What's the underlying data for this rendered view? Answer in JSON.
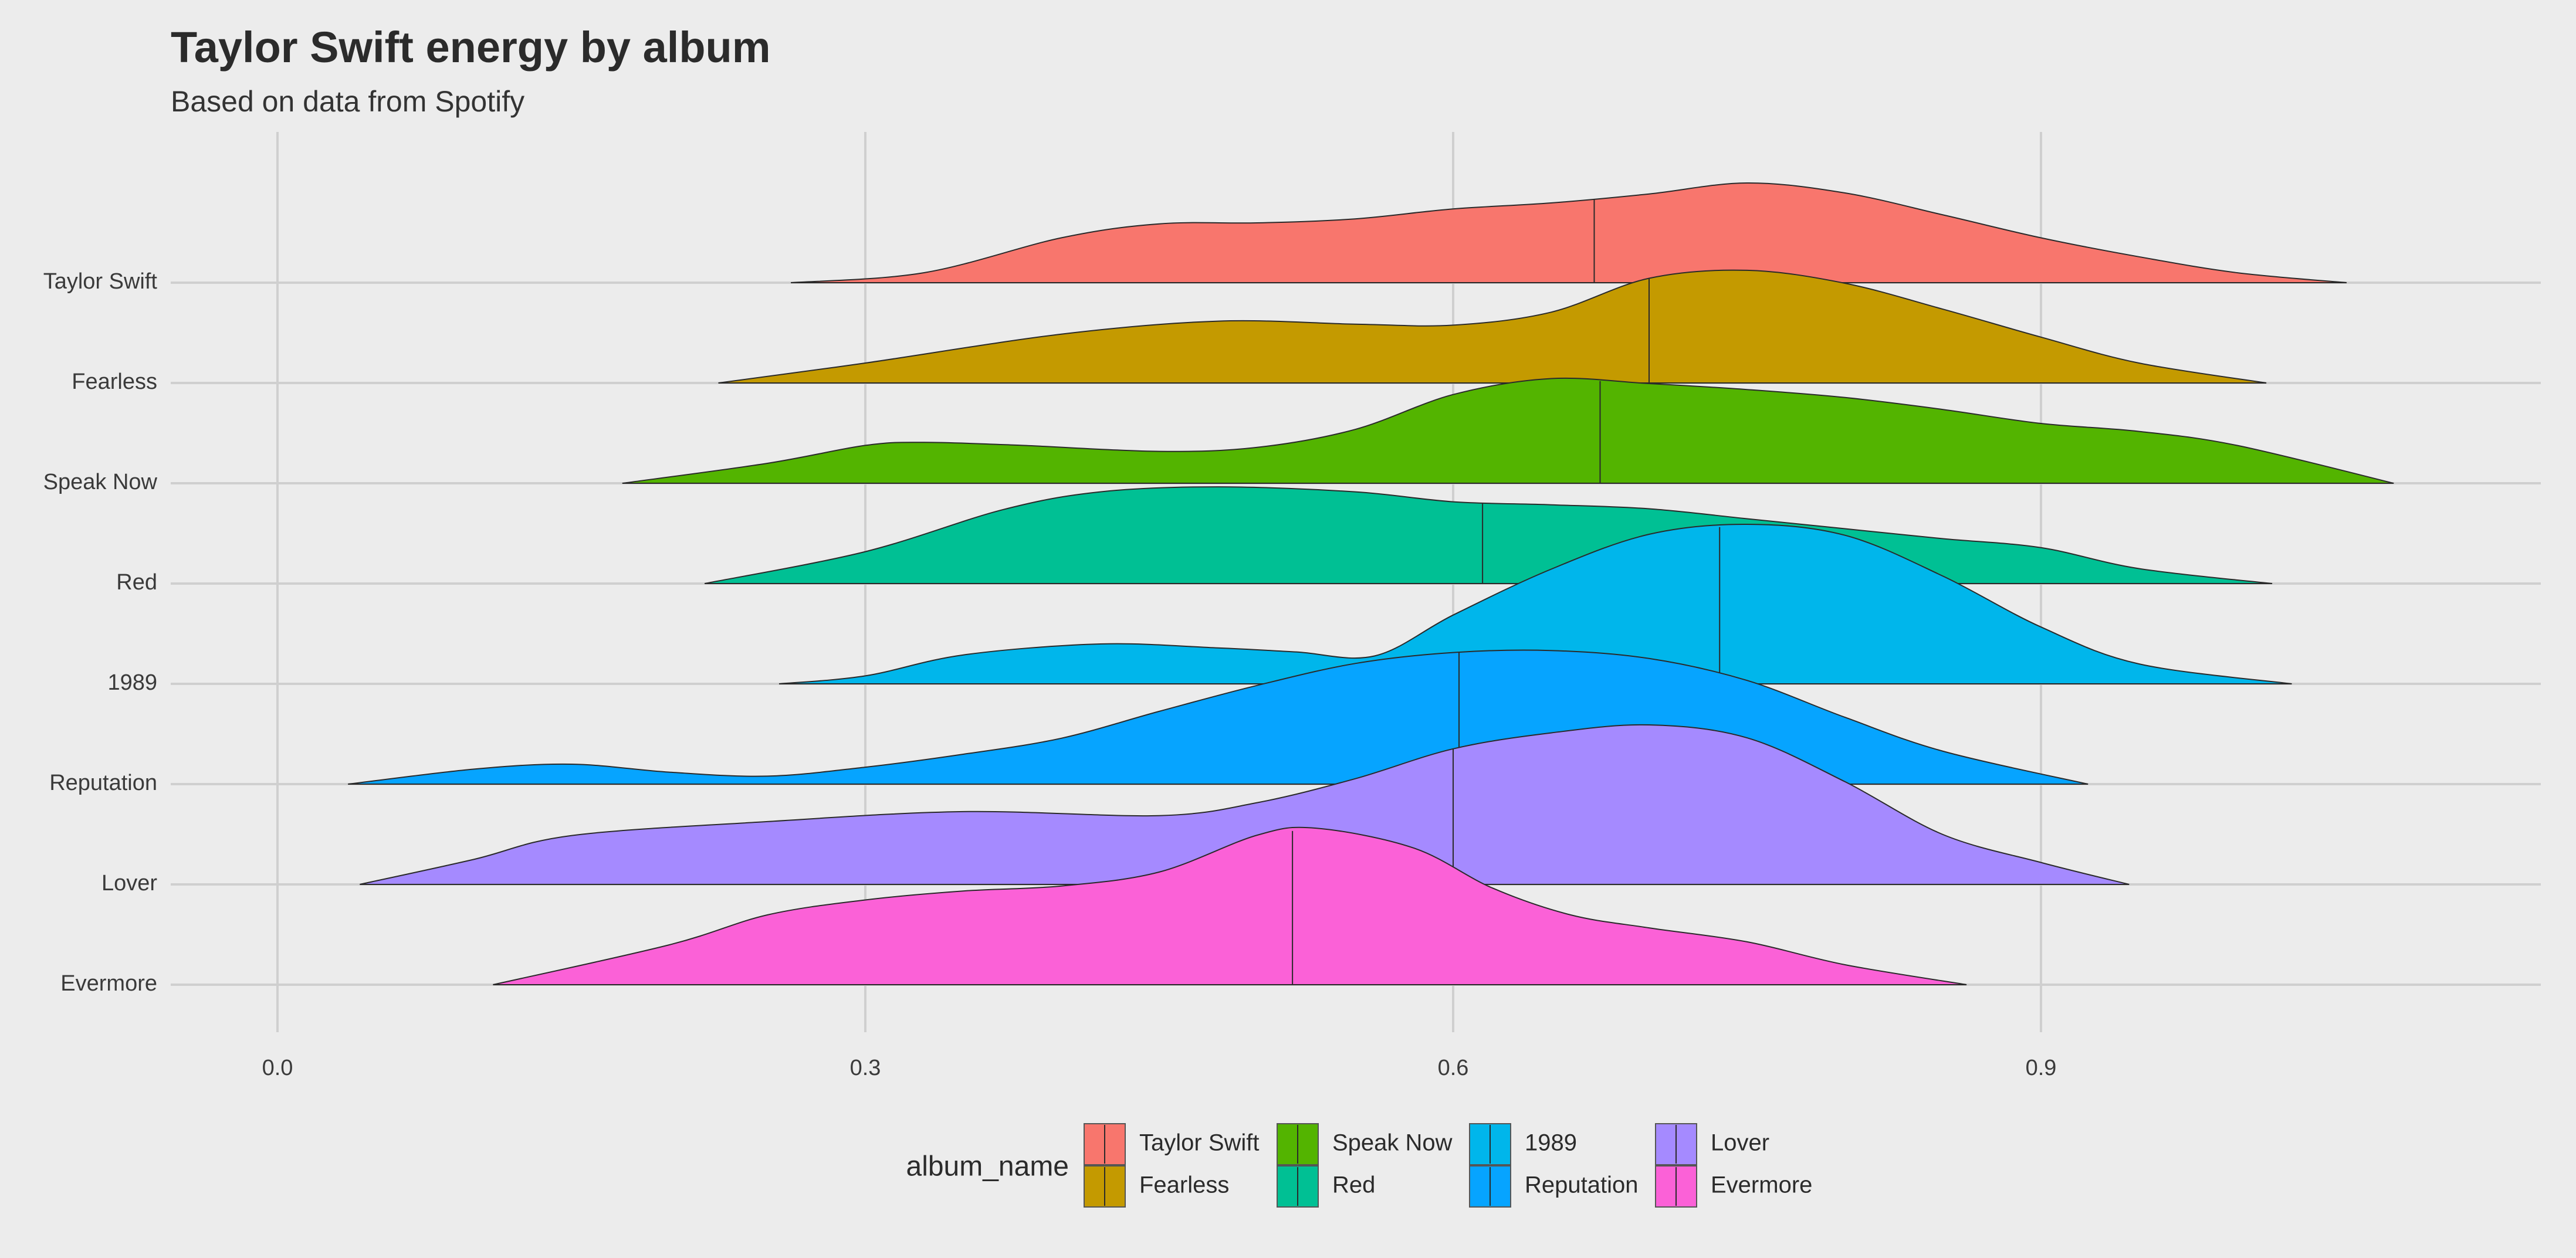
{
  "chart_data": {
    "type": "area",
    "title": "Taylor Swift energy by album",
    "subtitle": "Based on data from Spotify",
    "xlabel": "",
    "ylabel": "",
    "xlim": [
      -0.055,
      1.155
    ],
    "xticks": [
      "0.0",
      "0.3",
      "0.6",
      "0.9"
    ],
    "xtick_values": [
      0.0,
      0.3,
      0.6,
      0.9
    ],
    "grid": true,
    "legend": {
      "title": "album_name",
      "position": "bottom",
      "entries": [
        "Taylor Swift",
        "Fearless",
        "Speak Now",
        "Red",
        "1989",
        "Reputation",
        "Lover",
        "Evermore"
      ]
    },
    "series": [
      {
        "name": "Taylor Swift",
        "color": "#F8766D",
        "range": [
          0.262,
          1.056
        ],
        "median": 0.672,
        "density": [
          [
            0.262,
            0.0
          ],
          [
            0.33,
            0.1
          ],
          [
            0.4,
            0.45
          ],
          [
            0.45,
            0.59
          ],
          [
            0.5,
            0.6
          ],
          [
            0.55,
            0.64
          ],
          [
            0.6,
            0.74
          ],
          [
            0.65,
            0.8
          ],
          [
            0.7,
            0.89
          ],
          [
            0.75,
            1.0
          ],
          [
            0.8,
            0.9
          ],
          [
            0.85,
            0.68
          ],
          [
            0.9,
            0.45
          ],
          [
            0.95,
            0.26
          ],
          [
            1.0,
            0.1
          ],
          [
            1.056,
            0.0
          ]
        ]
      },
      {
        "name": "Fearless",
        "color": "#C49A00",
        "range": [
          0.225,
          1.015
        ],
        "median": 0.7,
        "density": [
          [
            0.225,
            0.0
          ],
          [
            0.3,
            0.2
          ],
          [
            0.4,
            0.49
          ],
          [
            0.48,
            0.62
          ],
          [
            0.55,
            0.59
          ],
          [
            0.6,
            0.58
          ],
          [
            0.65,
            0.71
          ],
          [
            0.7,
            1.05
          ],
          [
            0.75,
            1.13
          ],
          [
            0.8,
            1.0
          ],
          [
            0.85,
            0.74
          ],
          [
            0.9,
            0.46
          ],
          [
            0.95,
            0.2
          ],
          [
            1.015,
            0.0
          ]
        ]
      },
      {
        "name": "Speak Now",
        "color": "#53B400",
        "range": [
          0.176,
          1.08
        ],
        "median": 0.675,
        "density": [
          [
            0.176,
            0.0
          ],
          [
            0.25,
            0.2
          ],
          [
            0.3,
            0.38
          ],
          [
            0.33,
            0.41
          ],
          [
            0.38,
            0.38
          ],
          [
            0.45,
            0.32
          ],
          [
            0.5,
            0.36
          ],
          [
            0.55,
            0.54
          ],
          [
            0.6,
            0.89
          ],
          [
            0.65,
            1.05
          ],
          [
            0.7,
            1.0
          ],
          [
            0.75,
            0.94
          ],
          [
            0.8,
            0.86
          ],
          [
            0.85,
            0.74
          ],
          [
            0.9,
            0.6
          ],
          [
            0.95,
            0.52
          ],
          [
            1.0,
            0.38
          ],
          [
            1.08,
            0.0
          ]
        ]
      },
      {
        "name": "Red",
        "color": "#00C094",
        "range": [
          0.218,
          1.018
        ],
        "median": 0.615,
        "density": [
          [
            0.218,
            0.0
          ],
          [
            0.3,
            0.32
          ],
          [
            0.37,
            0.74
          ],
          [
            0.42,
            0.92
          ],
          [
            0.48,
            0.97
          ],
          [
            0.55,
            0.92
          ],
          [
            0.6,
            0.82
          ],
          [
            0.65,
            0.79
          ],
          [
            0.7,
            0.75
          ],
          [
            0.75,
            0.65
          ],
          [
            0.8,
            0.55
          ],
          [
            0.85,
            0.45
          ],
          [
            0.9,
            0.36
          ],
          [
            0.95,
            0.15
          ],
          [
            1.018,
            0.0
          ]
        ]
      },
      {
        "name": "1989",
        "color": "#00B6EB",
        "range": [
          0.256,
          1.028
        ],
        "median": 0.736,
        "density": [
          [
            0.256,
            0.0
          ],
          [
            0.3,
            0.08
          ],
          [
            0.35,
            0.29
          ],
          [
            0.42,
            0.4
          ],
          [
            0.48,
            0.36
          ],
          [
            0.52,
            0.32
          ],
          [
            0.56,
            0.28
          ],
          [
            0.6,
            0.69
          ],
          [
            0.65,
            1.15
          ],
          [
            0.7,
            1.5
          ],
          [
            0.75,
            1.6
          ],
          [
            0.8,
            1.49
          ],
          [
            0.85,
            1.08
          ],
          [
            0.9,
            0.57
          ],
          [
            0.95,
            0.2
          ],
          [
            1.028,
            0.0
          ]
        ]
      },
      {
        "name": "Reputation",
        "color": "#06A4FF",
        "range": [
          0.036,
          0.924
        ],
        "median": 0.603,
        "density": [
          [
            0.036,
            0.0
          ],
          [
            0.1,
            0.15
          ],
          [
            0.15,
            0.2
          ],
          [
            0.2,
            0.12
          ],
          [
            0.25,
            0.08
          ],
          [
            0.3,
            0.17
          ],
          [
            0.35,
            0.3
          ],
          [
            0.4,
            0.46
          ],
          [
            0.45,
            0.73
          ],
          [
            0.5,
            0.99
          ],
          [
            0.55,
            1.21
          ],
          [
            0.6,
            1.32
          ],
          [
            0.65,
            1.34
          ],
          [
            0.7,
            1.26
          ],
          [
            0.75,
            1.04
          ],
          [
            0.8,
            0.67
          ],
          [
            0.85,
            0.33
          ],
          [
            0.924,
            0.0
          ]
        ]
      },
      {
        "name": "Lover",
        "color": "#A58AFF",
        "range": [
          0.042,
          0.945
        ],
        "median": 0.6,
        "density": [
          [
            0.042,
            0.0
          ],
          [
            0.1,
            0.25
          ],
          [
            0.15,
            0.49
          ],
          [
            0.25,
            0.63
          ],
          [
            0.35,
            0.73
          ],
          [
            0.45,
            0.69
          ],
          [
            0.5,
            0.82
          ],
          [
            0.55,
            1.06
          ],
          [
            0.6,
            1.36
          ],
          [
            0.65,
            1.52
          ],
          [
            0.7,
            1.6
          ],
          [
            0.75,
            1.47
          ],
          [
            0.8,
            1.03
          ],
          [
            0.85,
            0.5
          ],
          [
            0.9,
            0.22
          ],
          [
            0.945,
            0.0
          ]
        ]
      },
      {
        "name": "Evermore",
        "color": "#FB61D7",
        "range": [
          0.11,
          0.862
        ],
        "median": 0.518,
        "density": [
          [
            0.11,
            0.0
          ],
          [
            0.2,
            0.4
          ],
          [
            0.25,
            0.7
          ],
          [
            0.3,
            0.85
          ],
          [
            0.35,
            0.94
          ],
          [
            0.4,
            0.99
          ],
          [
            0.45,
            1.13
          ],
          [
            0.5,
            1.5
          ],
          [
            0.53,
            1.57
          ],
          [
            0.58,
            1.37
          ],
          [
            0.62,
            0.97
          ],
          [
            0.66,
            0.7
          ],
          [
            0.7,
            0.57
          ],
          [
            0.75,
            0.43
          ],
          [
            0.8,
            0.2
          ],
          [
            0.862,
            0.0
          ]
        ]
      }
    ]
  }
}
